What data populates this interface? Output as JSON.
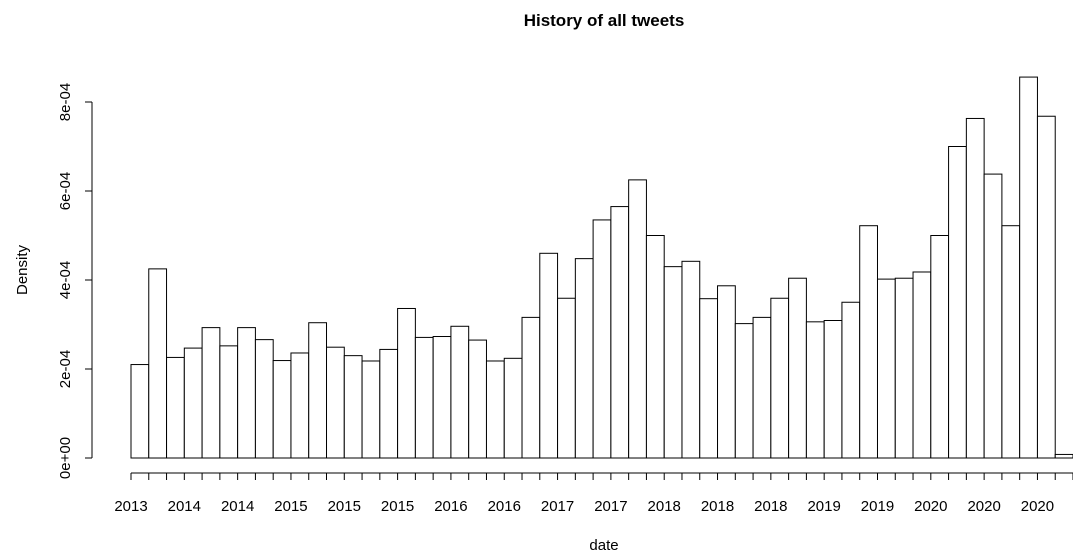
{
  "chart_data": {
    "type": "bar",
    "title": "History of all tweets",
    "xlabel": "date",
    "ylabel": "Density",
    "ylim": [
      0,
      0.00085
    ],
    "y_ticks": [
      0,
      0.0002,
      0.0004,
      0.0006,
      0.0008
    ],
    "y_tick_labels": [
      "0e+00",
      "2e-04",
      "4e-04",
      "6e-04",
      "8e-04"
    ],
    "x_tick_labels": [
      "2013",
      "2014",
      "2014",
      "2015",
      "2015",
      "2015",
      "2016",
      "2016",
      "2017",
      "2017",
      "2018",
      "2018",
      "2018",
      "2019",
      "2019",
      "2020",
      "2020",
      "2020"
    ],
    "grid": false,
    "values": [
      0.00021,
      0.000425,
      0.000226,
      0.000247,
      0.000293,
      0.000252,
      0.000293,
      0.000266,
      0.000219,
      0.000236,
      0.000304,
      0.000249,
      0.00023,
      0.000218,
      0.000244,
      0.000336,
      0.000271,
      0.000273,
      0.000296,
      0.000265,
      0.000218,
      0.000224,
      0.000316,
      0.00046,
      0.000359,
      0.000448,
      0.000535,
      0.000565,
      0.000625,
      0.0005,
      0.00043,
      0.000442,
      0.000358,
      0.000387,
      0.000302,
      0.000316,
      0.000359,
      0.000404,
      0.000306,
      0.000309,
      0.00035,
      0.000522,
      0.000402,
      0.000404,
      0.000418,
      0.0005,
      0.0007,
      0.000763,
      0.000638,
      0.000522,
      0.000856,
      0.000768,
      8e-06
    ]
  }
}
